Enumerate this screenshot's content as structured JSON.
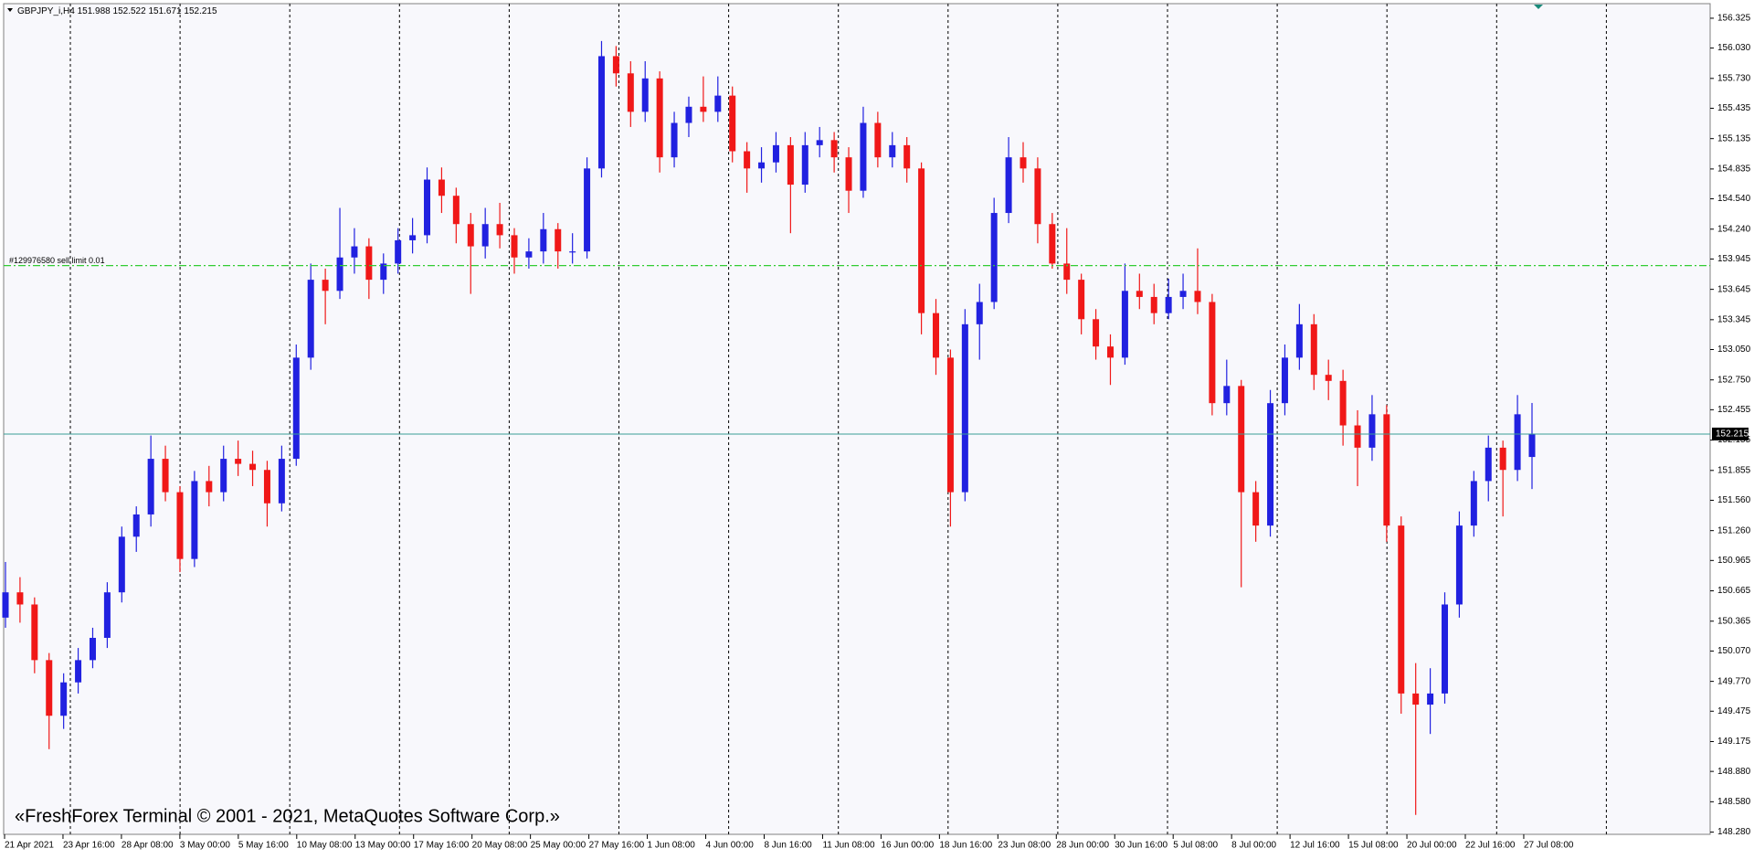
{
  "chart_data": {
    "type": "candlestick",
    "symbol": "GBPJPY_i,H4",
    "watermark": "«FreshForex Terminal © 2001 - 2021, MetaQuotes Software Corp.»",
    "up_color": "#2121e0",
    "down_color": "#f01818",
    "ylim": [
      148.258,
      156.469
    ],
    "yticks": [
      156.325,
      {
        "value": 156.03,
        "label": "156.030"
      },
      {
        "value": 155.73,
        "label": "155.730"
      },
      155.435,
      155.135,
      154.835,
      {
        "value": 154.54,
        "label": "154.540"
      },
      {
        "value": 154.24,
        "label": "154.240"
      },
      153.945,
      153.645,
      153.345,
      {
        "value": 153.05,
        "label": "153.050"
      },
      {
        "value": 152.75,
        "label": "152.750"
      },
      152.455,
      152.155,
      151.855,
      {
        "value": 151.56,
        "label": "151.560"
      },
      {
        "value": 151.26,
        "label": "151.260"
      },
      150.965,
      150.665,
      150.365,
      {
        "value": 150.07,
        "label": "150.070"
      },
      {
        "value": 149.77,
        "label": "149.770"
      },
      149.475,
      149.175,
      {
        "value": 148.88,
        "label": "148.880"
      },
      {
        "value": 148.58,
        "label": "148.580"
      },
      {
        "value": 148.28,
        "label": "148.280"
      }
    ],
    "x_labels": [
      "21 Apr 2021",
      "23 Apr 16:00",
      "28 Apr 08:00",
      "3 May 00:00",
      "5 May 16:00",
      "10 May 08:00",
      "13 May 00:00",
      "17 May 16:00",
      "20 May 08:00",
      "25 May 00:00",
      "27 May 16:00",
      "1 Jun 08:00",
      "4 Jun 00:00",
      "8 Jun 16:00",
      "11 Jun 08:00",
      "16 Jun 00:00",
      "18 Jun 16:00",
      "23 Jun 08:00",
      "28 Jun 00:00",
      "30 Jun 16:00",
      "5 Jul 08:00",
      "8 Jul 00:00",
      "12 Jul 16:00",
      "15 Jul 08:00",
      "20 Jul 00:00",
      "22 Jul 16:00",
      "27 Jul 08:00"
    ],
    "order_line": {
      "text": "#129976580 sell limit 0.01",
      "price": 153.88,
      "color": "#33cc33"
    },
    "bid_color": "#3a9e96",
    "candles": [
      [
        150.4,
        150.95,
        150.3,
        150.65
      ],
      [
        150.65,
        150.8,
        150.35,
        150.53
      ],
      [
        150.53,
        150.6,
        149.85,
        149.98
      ],
      [
        149.98,
        150.05,
        149.1,
        149.43
      ],
      [
        149.43,
        149.85,
        149.3,
        149.76
      ],
      [
        149.76,
        150.1,
        149.65,
        149.98
      ],
      [
        149.98,
        150.3,
        149.9,
        150.2
      ],
      [
        150.2,
        150.75,
        150.1,
        150.65
      ],
      [
        150.65,
        151.3,
        150.55,
        151.2
      ],
      [
        151.2,
        151.5,
        151.05,
        151.42
      ],
      [
        151.42,
        152.2,
        151.3,
        151.97
      ],
      [
        151.97,
        152.1,
        151.55,
        151.64
      ],
      [
        151.64,
        151.7,
        150.85,
        150.98
      ],
      [
        150.98,
        151.85,
        150.9,
        151.75
      ],
      [
        151.75,
        151.9,
        151.5,
        151.64
      ],
      [
        151.64,
        152.1,
        151.55,
        151.97
      ],
      [
        151.97,
        152.15,
        151.8,
        151.92
      ],
      [
        151.92,
        152.05,
        151.7,
        151.86
      ],
      [
        151.86,
        151.95,
        151.3,
        151.53
      ],
      [
        151.53,
        152.1,
        151.45,
        151.97
      ],
      [
        151.97,
        153.1,
        151.9,
        152.97
      ],
      [
        152.97,
        153.9,
        152.85,
        153.74
      ],
      [
        153.74,
        153.85,
        153.3,
        153.63
      ],
      [
        153.63,
        154.45,
        153.55,
        153.96
      ],
      [
        153.96,
        154.25,
        153.8,
        154.07
      ],
      [
        154.07,
        154.15,
        153.55,
        153.74
      ],
      [
        153.74,
        154.0,
        153.6,
        153.9
      ],
      [
        153.9,
        154.25,
        153.8,
        154.13
      ],
      [
        154.13,
        154.35,
        154.0,
        154.18
      ],
      [
        154.18,
        154.85,
        154.1,
        154.73
      ],
      [
        154.73,
        154.85,
        154.4,
        154.57
      ],
      [
        154.57,
        154.65,
        154.1,
        154.29
      ],
      [
        154.29,
        154.4,
        153.6,
        154.07
      ],
      [
        154.07,
        154.45,
        153.95,
        154.29
      ],
      [
        154.29,
        154.5,
        154.05,
        154.18
      ],
      [
        154.18,
        154.25,
        153.8,
        153.96
      ],
      [
        153.96,
        154.15,
        153.85,
        154.02
      ],
      [
        154.02,
        154.4,
        153.9,
        154.24
      ],
      [
        154.24,
        154.3,
        153.85,
        154.02
      ],
      [
        154.02,
        154.2,
        153.9,
        154.02
      ],
      [
        154.02,
        154.95,
        153.95,
        154.84
      ],
      [
        154.84,
        156.1,
        154.75,
        155.95
      ],
      [
        155.95,
        156.05,
        155.65,
        155.78
      ],
      [
        155.78,
        155.9,
        155.25,
        155.4
      ],
      [
        155.4,
        155.9,
        155.3,
        155.73
      ],
      [
        155.73,
        155.8,
        154.8,
        154.95
      ],
      [
        154.95,
        155.4,
        154.85,
        155.29
      ],
      [
        155.29,
        155.55,
        155.15,
        155.45
      ],
      [
        155.45,
        155.75,
        155.3,
        155.4
      ],
      [
        155.4,
        155.75,
        155.3,
        155.56
      ],
      [
        155.56,
        155.65,
        154.9,
        155.01
      ],
      [
        155.01,
        155.1,
        154.6,
        154.84
      ],
      [
        154.84,
        155.05,
        154.7,
        154.9
      ],
      [
        154.9,
        155.2,
        154.8,
        155.07
      ],
      [
        155.07,
        155.15,
        154.2,
        154.68
      ],
      [
        154.68,
        155.2,
        154.6,
        155.07
      ],
      [
        155.07,
        155.25,
        154.95,
        155.12
      ],
      [
        155.12,
        155.2,
        154.8,
        154.95
      ],
      [
        154.95,
        155.05,
        154.4,
        154.62
      ],
      [
        154.62,
        155.45,
        154.55,
        155.29
      ],
      [
        155.29,
        155.4,
        154.85,
        154.95
      ],
      [
        154.95,
        155.2,
        154.85,
        155.07
      ],
      [
        155.07,
        155.15,
        154.7,
        154.84
      ],
      [
        154.84,
        154.9,
        153.2,
        153.41
      ],
      [
        153.41,
        153.55,
        152.8,
        152.97
      ],
      [
        152.97,
        153.05,
        151.3,
        151.64
      ],
      [
        151.64,
        153.45,
        151.55,
        153.3
      ],
      [
        153.3,
        153.7,
        152.95,
        153.52
      ],
      [
        153.52,
        154.55,
        153.45,
        154.4
      ],
      [
        154.4,
        155.15,
        154.3,
        154.95
      ],
      [
        154.95,
        155.1,
        154.7,
        154.84
      ],
      [
        154.84,
        154.95,
        154.1,
        154.29
      ],
      [
        154.29,
        154.4,
        153.85,
        153.9
      ],
      [
        153.9,
        154.25,
        153.6,
        153.74
      ],
      [
        153.74,
        153.8,
        153.2,
        153.35
      ],
      [
        153.35,
        153.45,
        152.95,
        153.08
      ],
      [
        153.08,
        153.2,
        152.7,
        152.97
      ],
      [
        152.97,
        153.9,
        152.9,
        153.63
      ],
      [
        153.63,
        153.8,
        153.45,
        153.57
      ],
      [
        153.57,
        153.7,
        153.3,
        153.41
      ],
      [
        153.41,
        153.75,
        153.35,
        153.57
      ],
      [
        153.57,
        153.8,
        153.45,
        153.63
      ],
      [
        153.63,
        154.05,
        153.4,
        153.52
      ],
      [
        153.52,
        153.6,
        152.4,
        152.52
      ],
      [
        152.52,
        152.95,
        152.4,
        152.69
      ],
      [
        152.69,
        152.75,
        150.7,
        151.64
      ],
      [
        151.64,
        151.75,
        151.15,
        151.31
      ],
      [
        151.31,
        152.65,
        151.2,
        152.52
      ],
      [
        152.52,
        153.1,
        152.4,
        152.97
      ],
      [
        152.97,
        153.5,
        152.85,
        153.3
      ],
      [
        153.3,
        153.4,
        152.65,
        152.8
      ],
      [
        152.8,
        152.95,
        152.55,
        152.74
      ],
      [
        152.74,
        152.85,
        152.1,
        152.3
      ],
      [
        152.3,
        152.45,
        151.7,
        152.08
      ],
      [
        152.08,
        152.6,
        151.95,
        152.41
      ],
      [
        152.41,
        152.5,
        151.15,
        151.31
      ],
      [
        151.31,
        151.4,
        149.45,
        149.65
      ],
      [
        149.65,
        149.95,
        148.45,
        149.54
      ],
      [
        149.54,
        149.9,
        149.25,
        149.65
      ],
      [
        149.65,
        150.65,
        149.55,
        150.53
      ],
      [
        150.53,
        151.45,
        150.4,
        151.31
      ],
      [
        151.31,
        151.85,
        151.2,
        151.75
      ],
      [
        151.75,
        152.2,
        151.55,
        152.08
      ],
      [
        152.08,
        152.15,
        151.4,
        151.86
      ],
      [
        151.86,
        152.6,
        151.75,
        152.41
      ],
      [
        151.988,
        152.522,
        151.671,
        152.215
      ]
    ]
  }
}
